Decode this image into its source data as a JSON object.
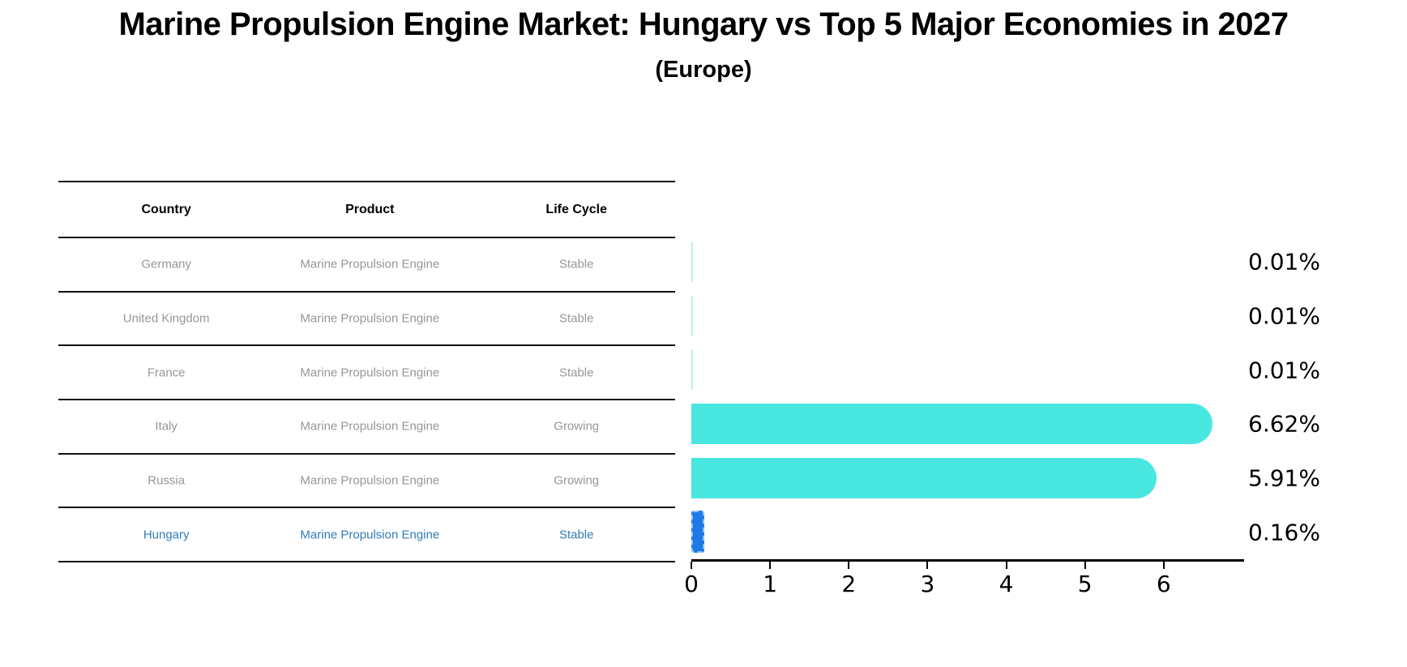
{
  "header": {
    "title": "Marine Propulsion Engine Market: Hungary vs Top 5 Major Economies in 2027",
    "subtitle": "(Europe)"
  },
  "table": {
    "headers": [
      "Country",
      "Product",
      "Life Cycle"
    ],
    "rows": [
      {
        "country": "Germany",
        "product": "Marine Propulsion Engine",
        "life_cycle": "Stable"
      },
      {
        "country": "United Kingdom",
        "product": "Marine Propulsion Engine",
        "life_cycle": "Stable"
      },
      {
        "country": "France",
        "product": "Marine Propulsion Engine",
        "life_cycle": "Stable"
      },
      {
        "country": "Italy",
        "product": "Marine Propulsion Engine",
        "life_cycle": "Growing"
      },
      {
        "country": "Russia",
        "product": "Marine Propulsion Engine",
        "life_cycle": "Growing"
      },
      {
        "country": "Hungary",
        "product": "Marine Propulsion Engine",
        "life_cycle": "Stable"
      }
    ],
    "highlight_index": 5
  },
  "chart_data": {
    "type": "bar",
    "orientation": "horizontal",
    "title": "Marine Propulsion Engine Market: Hungary vs Top 5 Major Economies in 2027",
    "subtitle": "(Europe)",
    "categories": [
      "Germany",
      "United Kingdom",
      "France",
      "Italy",
      "Russia",
      "Hungary"
    ],
    "values": [
      0.01,
      0.01,
      0.01,
      6.62,
      5.91,
      0.16
    ],
    "value_labels": [
      "0.01%",
      "0.01%",
      "0.01%",
      "6.62%",
      "5.91%",
      "0.16%"
    ],
    "xlabel": "",
    "ylabel": "",
    "xlim": [
      0,
      7
    ],
    "x_ticks": [
      "0",
      "1",
      "2",
      "3",
      "4",
      "5",
      "6"
    ],
    "grid": false,
    "legend": false,
    "highlight_index": 5,
    "colors": {
      "bar": "#48e8e0",
      "bar_faint": "#b9f2ee",
      "highlight_bar": "#1f7ae8",
      "highlight_bar_border": "#8fc3f3",
      "highlight_text": "#2f7cba",
      "row_text": "#969696",
      "header_text": "#000000",
      "axis": "#000000"
    }
  }
}
